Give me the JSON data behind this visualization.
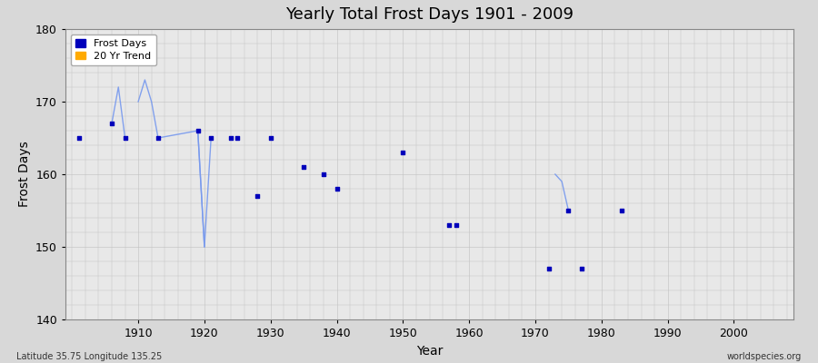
{
  "title": "Yearly Total Frost Days 1901 - 2009",
  "xlabel": "Year",
  "ylabel": "Frost Days",
  "footnote_left": "Latitude 35.75 Longitude 135.25",
  "footnote_right": "worldspecies.org",
  "ylim": [
    140,
    180
  ],
  "xlim": [
    1899,
    2009
  ],
  "yticks": [
    140,
    150,
    160,
    170,
    180
  ],
  "xticks": [
    1910,
    1920,
    1930,
    1940,
    1950,
    1960,
    1970,
    1980,
    1990,
    2000
  ],
  "scatter_x": [
    1901,
    1906,
    1908,
    1913,
    1919,
    1921,
    1924,
    1925,
    1928,
    1930,
    1935,
    1938,
    1940,
    1950,
    1957,
    1958,
    1972,
    1975,
    1977,
    1983
  ],
  "scatter_y": [
    165,
    167,
    165,
    165,
    166,
    165,
    165,
    165,
    157,
    165,
    161,
    160,
    158,
    163,
    153,
    153,
    147,
    155,
    147,
    155
  ],
  "line_segments": [
    {
      "x": [
        1906,
        1907,
        1908
      ],
      "y": [
        167,
        172,
        165
      ]
    },
    {
      "x": [
        1910,
        1911,
        1912,
        1913,
        1919,
        1920
      ],
      "y": [
        170,
        173,
        170,
        165,
        166,
        150
      ]
    },
    {
      "x": [
        1919,
        1920,
        1921
      ],
      "y": [
        166,
        150,
        165
      ]
    },
    {
      "x": [
        1973,
        1974,
        1975
      ],
      "y": [
        160,
        159,
        155
      ]
    }
  ],
  "scatter_color": "#0000bb",
  "line_color": "#7799ee",
  "bg_color": "#d8d8d8",
  "plot_bg_color": "#e8e8e8",
  "grid_color": "#c0c0c0",
  "legend_frost_color": "#0000bb",
  "legend_trend_color": "#ffaa00"
}
